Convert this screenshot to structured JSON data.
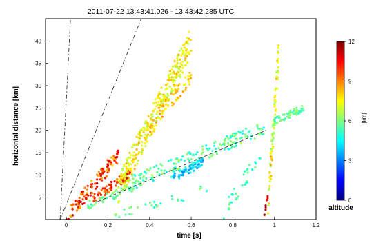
{
  "chart_data": {
    "type": "scatter",
    "title": "2011-07-22  13:43:41.026  - 13:43:42.285 UTC",
    "xlabel": "time [s]",
    "ylabel": "horizontal distance [km]",
    "xlim": [
      -0.1,
      1.2
    ],
    "ylim": [
      0,
      45
    ],
    "x_ticks": [
      "0",
      "0.2",
      "0.4",
      "0.6",
      "0.8",
      "1",
      "1.2"
    ],
    "y_ticks": [
      "5",
      "10",
      "15",
      "20",
      "25",
      "30",
      "35",
      "40"
    ],
    "grid": false,
    "colorbar": {
      "label": "[km]",
      "title": "altitude",
      "range": [
        0,
        12
      ],
      "ticks": [
        "0",
        "3",
        "6",
        "9",
        "12"
      ],
      "colormap": "jet",
      "colors": [
        "#00007f",
        "#0000ff",
        "#007fff",
        "#00ffff",
        "#7fff7f",
        "#ffff00",
        "#ff7f00",
        "#ff0000",
        "#7f0000"
      ]
    },
    "reference_lines": [
      {
        "style": "dash-dot",
        "points": [
          [
            -0.03,
            0
          ],
          [
            0.02,
            45
          ]
        ]
      },
      {
        "style": "dash-dot",
        "points": [
          [
            -0.03,
            0
          ],
          [
            0.36,
            45
          ]
        ]
      },
      {
        "style": "dashed",
        "points": [
          [
            0.15,
            4
          ],
          [
            0.96,
            20
          ]
        ]
      }
    ],
    "clusters": [
      {
        "x": [
          0.0,
          0.25
        ],
        "y": [
          0.5,
          14.5
        ],
        "alt": [
          8,
          11.5
        ],
        "n": 130
      },
      {
        "x": [
          0.13,
          0.31
        ],
        "y": [
          4.5,
          10.5
        ],
        "alt": [
          8.5,
          11
        ],
        "n": 70
      },
      {
        "x": [
          0.25,
          0.6
        ],
        "y": [
          7,
          40
        ],
        "alt": [
          6.5,
          8.5
        ],
        "n": 320
      },
      {
        "x": [
          0.38,
          0.6
        ],
        "y": [
          20,
          32
        ],
        "alt": [
          7.5,
          9
        ],
        "n": 60
      },
      {
        "x": [
          0.1,
          0.35
        ],
        "y": [
          3,
          8
        ],
        "alt": [
          5,
          6.5
        ],
        "n": 50
      },
      {
        "x": [
          0.3,
          0.95
        ],
        "y": [
          8,
          20.5
        ],
        "alt": [
          4.5,
          6.5
        ],
        "n": 180
      },
      {
        "x": [
          0.5,
          0.66
        ],
        "y": [
          9,
          13
        ],
        "alt": [
          3,
          5
        ],
        "n": 70
      },
      {
        "x": [
          0.97,
          1.02
        ],
        "y": [
          3,
          37
        ],
        "alt": [
          6,
          8.5
        ],
        "n": 80
      },
      {
        "x": [
          0.95,
          0.97
        ],
        "y": [
          0.5,
          5
        ],
        "alt": [
          10,
          12
        ],
        "n": 8
      },
      {
        "x": [
          1.0,
          1.14
        ],
        "y": [
          22,
          25
        ],
        "alt": [
          5,
          6.5
        ],
        "n": 60
      },
      {
        "x": [
          0.75,
          0.95
        ],
        "y": [
          1,
          16
        ],
        "alt": [
          4.5,
          6
        ],
        "n": 35
      },
      {
        "x": [
          0.22,
          0.7
        ],
        "y": [
          0.5,
          7
        ],
        "alt": [
          4.5,
          6.5
        ],
        "n": 30
      }
    ]
  }
}
